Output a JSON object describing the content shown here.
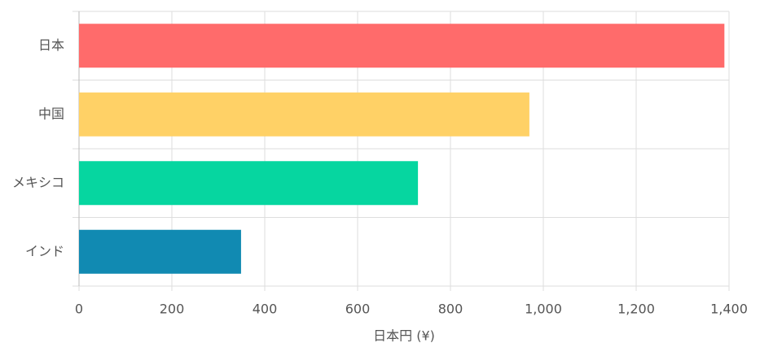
{
  "chart_data": {
    "type": "bar",
    "orientation": "horizontal",
    "categories": [
      "日本",
      "中国",
      "メキシコ",
      "インド"
    ],
    "values": [
      1390,
      970,
      730,
      349
    ],
    "colors": [
      "#ff6b6b",
      "#ffd166",
      "#06d6a0",
      "#118ab2"
    ],
    "x_label": "日本円 (¥)",
    "xlim": [
      0,
      1400
    ],
    "xticks": [
      0,
      200,
      400,
      600,
      800,
      {
        "value": 1000,
        "label": "1,000"
      },
      {
        "value": 1200,
        "label": "1,200"
      },
      {
        "value": 1400,
        "label": "1,400"
      }
    ],
    "grid": true
  }
}
